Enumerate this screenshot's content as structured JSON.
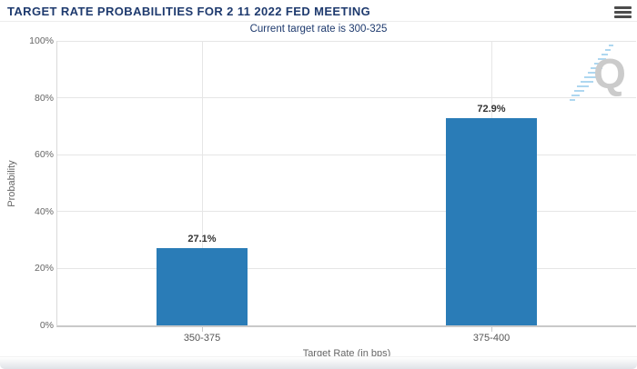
{
  "header": {
    "title": "TARGET RATE PROBABILITIES FOR 2 11 2022 FED MEETING",
    "menu_icon": "hamburger-menu-icon"
  },
  "chart_data": {
    "type": "bar",
    "title": "TARGET RATE PROBABILITIES FOR 2 11 2022 FED MEETING",
    "subtitle": "Current target rate is 300-325",
    "categories": [
      "350-375",
      "375-400"
    ],
    "values": [
      27.1,
      72.9
    ],
    "data_labels": [
      "27.1%",
      "72.9%"
    ],
    "xlabel": "Target Rate (in bps)",
    "ylabel": "Probability",
    "ylim": [
      0,
      100
    ],
    "yticks": [
      0,
      20,
      40,
      60,
      80,
      100
    ],
    "ytick_labels": [
      "0%",
      "20%",
      "40%",
      "60%",
      "80%",
      "100%"
    ],
    "grid": true,
    "legend": "none",
    "bar_color": "#2a7cb7"
  },
  "watermark": {
    "icon": "quikstrike-q-logo",
    "letter": "Q",
    "letter_color": "#cbcbcb",
    "dash_color": "#aed7f0"
  },
  "colors": {
    "title_navy": "#1e3a6e",
    "axis_text": "#666666",
    "gridline": "#e6e6e6",
    "axis_line": "#c9c9c9"
  }
}
